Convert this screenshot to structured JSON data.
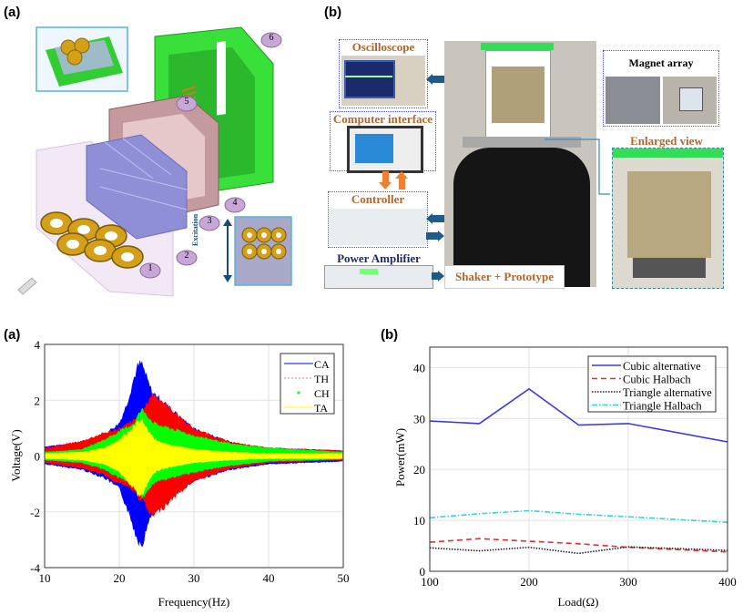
{
  "panels": {
    "top_a_label": "(a)",
    "top_b_label": "(b)",
    "bottom_a_label": "(a)",
    "bottom_b_label": "(b)"
  },
  "diagram": {
    "part_numbers": [
      "1",
      "2",
      "3",
      "4",
      "5",
      "6"
    ],
    "excitation_label": "Excitation"
  },
  "setup": {
    "oscilloscope": "Oscilloscope",
    "computer_interface": "Computer interface",
    "controller": "Controller",
    "power_amplifier": "Power Amplifier",
    "shaker_prototype": "Shaker + Prototype",
    "magnet_array": "Magnet array",
    "enlarged_view": "Enlarged view"
  },
  "chart_data": [
    {
      "type": "area",
      "title": "",
      "xlabel": "Frequency(Hz)",
      "ylabel": "Voltage(V)",
      "xlim": [
        10,
        50
      ],
      "ylim": [
        -4,
        4
      ],
      "xticks": [
        "10",
        "20",
        "30",
        "40",
        "50"
      ],
      "yticks": [
        "-4",
        "-2",
        "0",
        "2",
        "4"
      ],
      "grid": true,
      "legend_position": "top-right",
      "description_of_values": "envelope amplitude (V) of the symmetric voltage response",
      "x": [
        10,
        15,
        18,
        20,
        21,
        22,
        22.5,
        23,
        23.5,
        24,
        24.5,
        25,
        27,
        30,
        35,
        40,
        50
      ],
      "series": [
        {
          "name": "CA",
          "color": "#0000ff",
          "upper": [
            0.35,
            0.5,
            0.8,
            1.2,
            1.9,
            2.9,
            3.3,
            3.4,
            3.0,
            2.6,
            2.3,
            2.2,
            1.7,
            1.0,
            0.5,
            0.3,
            0.2
          ],
          "lower": [
            -0.3,
            -0.5,
            -0.8,
            -1.2,
            -1.9,
            -2.7,
            -3.1,
            -3.2,
            -2.9,
            -2.3,
            -2.1,
            -2.0,
            -1.5,
            -0.9,
            -0.5,
            -0.3,
            -0.2
          ]
        },
        {
          "name": "TH",
          "color": "#ff0000",
          "upper": [
            0.3,
            0.55,
            0.85,
            1.0,
            1.15,
            1.3,
            1.4,
            1.5,
            1.8,
            2.1,
            2.3,
            2.2,
            1.7,
            1.0,
            0.5,
            0.3,
            0.2
          ],
          "lower": [
            -0.25,
            -0.45,
            -0.7,
            -1.0,
            -1.1,
            -1.3,
            -1.5,
            -1.6,
            -1.8,
            -2.1,
            -2.2,
            -2.1,
            -1.6,
            -0.9,
            -0.45,
            -0.25,
            -0.15
          ]
        },
        {
          "name": "CH",
          "color": "#00ff00",
          "upper": [
            0.15,
            0.25,
            0.6,
            0.9,
            1.05,
            1.2,
            1.5,
            1.7,
            1.6,
            1.4,
            1.25,
            1.15,
            1.0,
            0.75,
            0.45,
            0.3,
            0.15
          ],
          "lower": [
            -0.15,
            -0.25,
            -0.5,
            -0.8,
            -0.95,
            -1.1,
            -1.3,
            -1.5,
            -1.4,
            -1.2,
            -1.05,
            -0.95,
            -0.8,
            -0.6,
            -0.35,
            -0.2,
            -0.12
          ]
        },
        {
          "name": "TA",
          "color": "#ffff00",
          "upper": [
            0.1,
            0.15,
            0.3,
            0.6,
            0.85,
            1.1,
            1.25,
            1.35,
            1.1,
            0.9,
            0.7,
            0.55,
            0.4,
            0.25,
            0.15,
            0.1,
            0.1
          ],
          "lower": [
            -0.1,
            -0.15,
            -0.3,
            -0.6,
            -0.9,
            -1.2,
            -1.45,
            -1.5,
            -1.2,
            -0.9,
            -0.7,
            -0.55,
            -0.4,
            -0.25,
            -0.15,
            -0.1,
            -0.1
          ]
        }
      ]
    },
    {
      "type": "line",
      "title": "",
      "xlabel": "Load(Ω)",
      "ylabel": "Power(mW)",
      "xlim": [
        100,
        400
      ],
      "ylim": [
        0,
        44
      ],
      "xticks": [
        "100",
        "200",
        "300",
        "400"
      ],
      "yticks": [
        "0",
        "10",
        "20",
        "30",
        "40"
      ],
      "grid": true,
      "legend_position": "top-right",
      "x": [
        100,
        150,
        200,
        250,
        300,
        400
      ],
      "series": [
        {
          "name": "Cubic alternative",
          "color": "#3a3ad8",
          "dash": "solid",
          "values": [
            29.5,
            29.0,
            35.8,
            28.7,
            29.0,
            25.4
          ]
        },
        {
          "name": "Cubic Halbach",
          "color": "#e03030",
          "dash": "dashed",
          "values": [
            5.7,
            6.4,
            5.9,
            5.4,
            4.7,
            3.8
          ]
        },
        {
          "name": "Triangle alternative",
          "color": "#222222",
          "dash": "dotted",
          "values": [
            4.6,
            4.0,
            4.7,
            3.5,
            4.8,
            4.1
          ]
        },
        {
          "name": "Triangle Halbach",
          "color": "#33d6d6",
          "dash": "dashdot",
          "values": [
            10.5,
            11.3,
            11.9,
            11.2,
            10.7,
            9.6
          ]
        }
      ]
    }
  ]
}
